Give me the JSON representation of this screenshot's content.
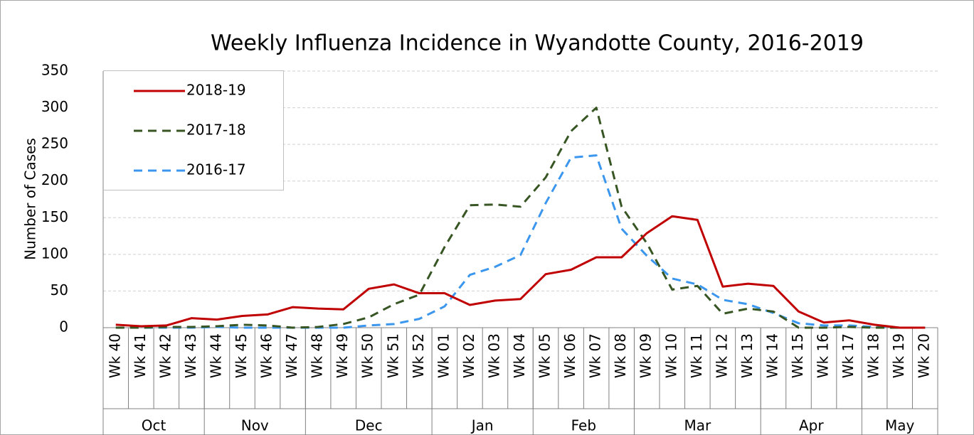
{
  "chart_data": {
    "type": "line",
    "title": "Weekly Influenza Incidence in Wyandotte County, 2016-2019",
    "y_label": "Number of Cases",
    "categories": [
      "Wk 40",
      "Wk 41",
      "Wk 42",
      "Wk 43",
      "Wk 44",
      "Wk 45",
      "Wk 46",
      "Wk 47",
      "Wk 48",
      "Wk 49",
      "Wk 50",
      "Wk 51",
      "Wk 52",
      "Wk 01",
      "Wk 02",
      "Wk 03",
      "Wk 04",
      "Wk 05",
      "Wk 06",
      "Wk 07",
      "Wk 08",
      "Wk 09",
      "Wk 10",
      "Wk 11",
      "Wk 12",
      "Wk 13",
      "Wk 14",
      "Wk 15",
      "Wk 16",
      "Wk 17",
      "Wk 18",
      "Wk 19",
      "Wk 20"
    ],
    "category_groups": [
      {
        "label": "Oct",
        "size": 4
      },
      {
        "label": "Nov",
        "size": 4
      },
      {
        "label": "Dec",
        "size": 5
      },
      {
        "label": "Jan",
        "size": 4
      },
      {
        "label": "Feb",
        "size": 4
      },
      {
        "label": "Mar",
        "size": 5
      },
      {
        "label": "Apr",
        "size": 4
      },
      {
        "label": "May",
        "size": 3
      }
    ],
    "series": [
      {
        "name": "2018-19",
        "color": "#c00000",
        "dashed": false,
        "values": [
          4,
          2,
          3,
          13,
          11,
          16,
          18,
          28,
          26,
          25,
          53,
          59,
          47,
          47,
          31,
          37,
          39,
          73,
          79,
          96,
          96,
          129,
          152,
          147,
          56,
          60,
          57,
          22,
          7,
          10,
          4,
          0,
          0
        ]
      },
      {
        "name": "2017-18",
        "color": "#375623",
        "dashed": true,
        "values": [
          0,
          0,
          1,
          1,
          2,
          4,
          3,
          0,
          1,
          5,
          14,
          32,
          45,
          110,
          167,
          168,
          165,
          205,
          268,
          300,
          165,
          115,
          52,
          57,
          19,
          26,
          22,
          0,
          0,
          1,
          0,
          0,
          0
        ]
      },
      {
        "name": "2016-17",
        "color": "#3b96ed",
        "dashed": true,
        "values": [
          0,
          0,
          0,
          0,
          1,
          0,
          0,
          0,
          0,
          0,
          3,
          5,
          12,
          29,
          72,
          83,
          99,
          170,
          232,
          235,
          135,
          98,
          67,
          59,
          38,
          32,
          20,
          6,
          3,
          3,
          1,
          0,
          0
        ]
      }
    ],
    "ylim": [
      0,
      350
    ],
    "yticks": [
      0,
      50,
      100,
      150,
      200,
      250,
      300,
      350
    ],
    "grid": true,
    "legend": "upper left"
  }
}
